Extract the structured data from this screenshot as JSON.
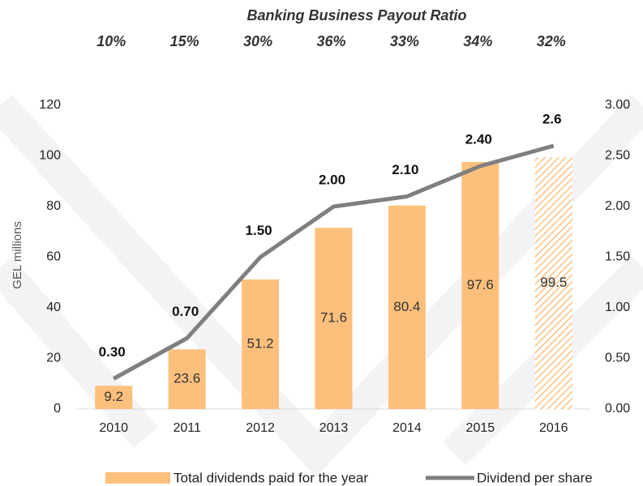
{
  "chart_data": {
    "type": "bar_line",
    "title": "Banking Business Payout Ratio",
    "payout_ratios": [
      10,
      15,
      30,
      36,
      33,
      34,
      32
    ],
    "payout_ratio_labels": [
      "10%",
      "15%",
      "30%",
      "36%",
      "33%",
      "34%",
      "32%"
    ],
    "categories": [
      "2010",
      "2011",
      "2012",
      "2013",
      "2014",
      "2015",
      "2016"
    ],
    "y_label": "GEL millions",
    "ylim": [
      0,
      120
    ],
    "yticks": [
      0,
      20,
      40,
      60,
      80,
      100,
      120
    ],
    "y2lim": [
      0,
      3
    ],
    "y2ticks": [
      {
        "value": 0,
        "label": "0.00"
      },
      {
        "value": 0.5,
        "label": "0.50"
      },
      {
        "value": 1,
        "label": "1.00"
      },
      {
        "value": 1.5,
        "label": "1.50"
      },
      {
        "value": 2,
        "label": "2.00"
      },
      {
        "value": 2.5,
        "label": "2.50"
      },
      {
        "value": 3,
        "label": "3.00"
      }
    ],
    "series": [
      {
        "name": "Total dividends paid for the year",
        "type": "bar",
        "color": "#fdc07c",
        "values": [
          9.2,
          23.6,
          51.2,
          71.6,
          80.4,
          97.6,
          99.5
        ],
        "hatched": [
          false,
          false,
          false,
          false,
          false,
          false,
          true
        ]
      },
      {
        "name": "Dividend per share",
        "type": "line",
        "axis": "y2",
        "color": "#7f7f7f",
        "values": [
          0.3,
          0.7,
          1.5,
          2.0,
          2.1,
          2.4,
          2.6
        ],
        "value_labels": [
          "0.30",
          "0.70",
          "1.50",
          "2.00",
          "2.10",
          "2.40",
          "2.6"
        ]
      }
    ]
  }
}
